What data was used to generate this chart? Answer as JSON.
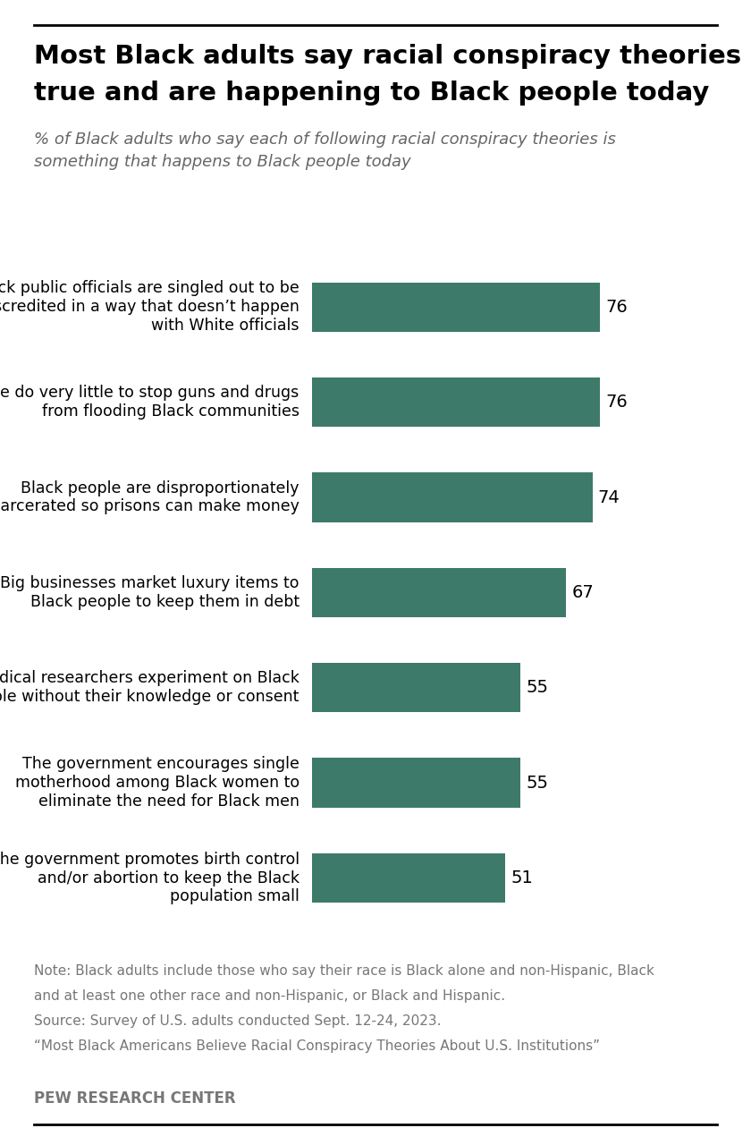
{
  "title_line1": "Most Black adults say racial conspiracy theories are",
  "title_line2": "true and are happening to Black people today",
  "subtitle": "% of Black adults who say each of following racial conspiracy theories is\nsomething that happens to Black people today",
  "categories": [
    "Black public officials are singled out to be\ndiscredited in a way that doesn’t happen\nwith White officials",
    "Police do very little to stop guns and drugs\nfrom flooding Black communities",
    "Black people are disproportionately\nincarcerated so prisons can make money",
    "Big businesses market luxury items to\nBlack people to keep them in debt",
    "Medical researchers experiment on Black\npeople without their knowledge or consent",
    "The government encourages single\nmotherhood among Black women to\neliminate the need for Black men",
    "The government promotes birth control\nand/or abortion to keep the Black\npopulation small"
  ],
  "values": [
    76,
    76,
    74,
    67,
    55,
    55,
    51
  ],
  "bar_color": "#3d7a6a",
  "value_color": "#000000",
  "title_color": "#000000",
  "subtitle_color": "#666666",
  "note_color": "#777777",
  "background_color": "#ffffff",
  "note_line1": "Note: Black adults include those who say their race is Black alone and non-Hispanic, Black",
  "note_line2": "and at least one other race and non-Hispanic, or Black and Hispanic.",
  "note_line3": "Source: Survey of U.S. adults conducted Sept. 12-24, 2023.",
  "note_line4": "“Most Black Americans Believe Racial Conspiracy Theories About U.S. Institutions”",
  "source_label": "PEW RESEARCH CENTER",
  "xlim": [
    0,
    100
  ],
  "title_fontsize": 21,
  "subtitle_fontsize": 13,
  "category_fontsize": 12.5,
  "value_fontsize": 14,
  "note_fontsize": 11,
  "source_fontsize": 12
}
